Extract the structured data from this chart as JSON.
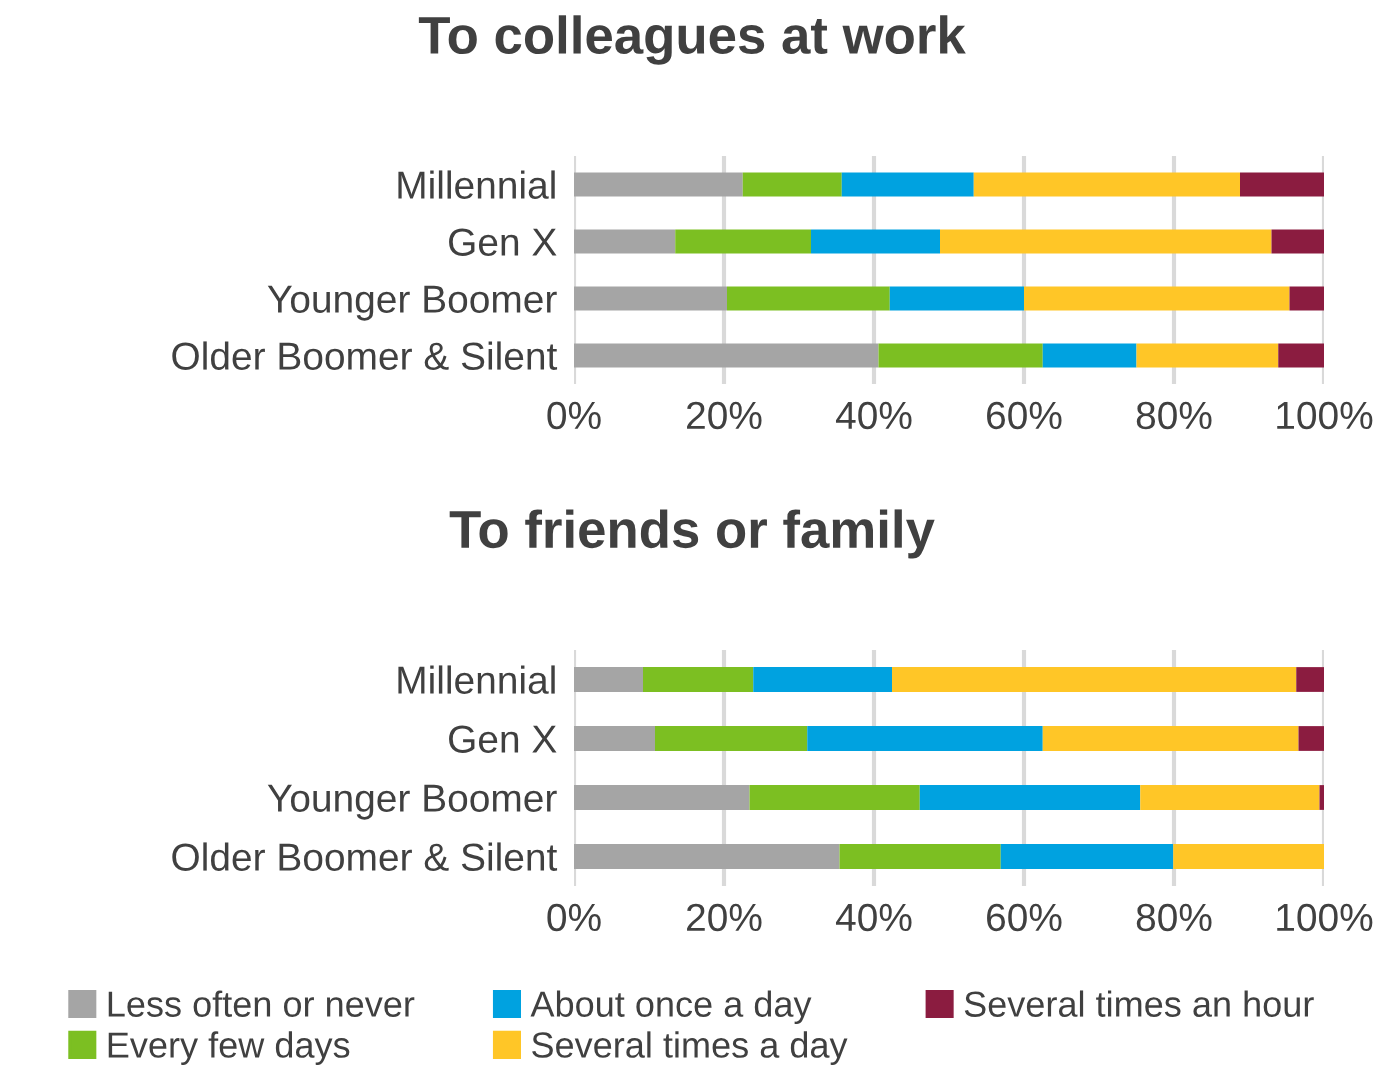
{
  "chart_data": [
    {
      "type": "bar",
      "orientation": "horizontal",
      "stacked": true,
      "title": "To colleagues at work",
      "categories": [
        "Millennial",
        "Gen X",
        "Younger Boomer",
        "Older Boomer & Silent"
      ],
      "series": [
        {
          "color": "#a5a5a5",
          "values": [
            22.5,
            13.5,
            20.4,
            40.6
          ]
        },
        {
          "color": "#7cbf22",
          "values": [
            13.2,
            18.1,
            21.7,
            21.9
          ]
        },
        {
          "color": "#00a2e0",
          "values": [
            17.6,
            17.2,
            17.9,
            12.5
          ]
        },
        {
          "color": "#ffc627",
          "values": [
            35.5,
            44.2,
            35.4,
            18.9
          ]
        },
        {
          "color": "#8b1c40",
          "values": [
            11.2,
            7.0,
            4.6,
            6.1
          ]
        }
      ],
      "xlim": [
        0,
        100
      ],
      "xticks": [
        {
          "value": 0,
          "label": "0%"
        },
        {
          "value": 20,
          "label": "20%"
        },
        {
          "value": 40,
          "label": "40%"
        },
        {
          "value": 60,
          "label": "60%"
        },
        {
          "value": 80,
          "label": "80%"
        },
        {
          "value": 100,
          "label": "100%"
        }
      ],
      "grid": "x",
      "legend": false
    },
    {
      "type": "bar",
      "orientation": "horizontal",
      "stacked": true,
      "title": "To friends or family",
      "categories": [
        "Millennial",
        "Gen X",
        "Younger Boomer",
        "Older Boomer & Silent"
      ],
      "series": [
        {
          "name": "Less often or never",
          "color": "#a5a5a5",
          "values": [
            9.2,
            10.8,
            23.4,
            35.4
          ]
        },
        {
          "name": "Every few days",
          "color": "#7cbf22",
          "values": [
            14.7,
            20.3,
            22.7,
            21.5
          ]
        },
        {
          "name": "About once a day",
          "color": "#00a2e0",
          "values": [
            18.5,
            31.4,
            29.4,
            23.0
          ]
        },
        {
          "name": "Several times a day",
          "color": "#ffc627",
          "values": [
            53.9,
            34.1,
            23.9,
            20.1
          ]
        },
        {
          "name": "Several times an hour",
          "color": "#8b1c40",
          "values": [
            3.7,
            3.4,
            0.6,
            0
          ]
        }
      ],
      "xlim": [
        0,
        100
      ],
      "xticks": [
        {
          "value": 0,
          "label": "0%"
        },
        {
          "value": 20,
          "label": "20%"
        },
        {
          "value": 40,
          "label": "40%"
        },
        {
          "value": 60,
          "label": "60%"
        },
        {
          "value": 80,
          "label": "80%"
        },
        {
          "value": 100,
          "label": "100%"
        }
      ],
      "grid": "x",
      "legend": "bottom"
    }
  ]
}
